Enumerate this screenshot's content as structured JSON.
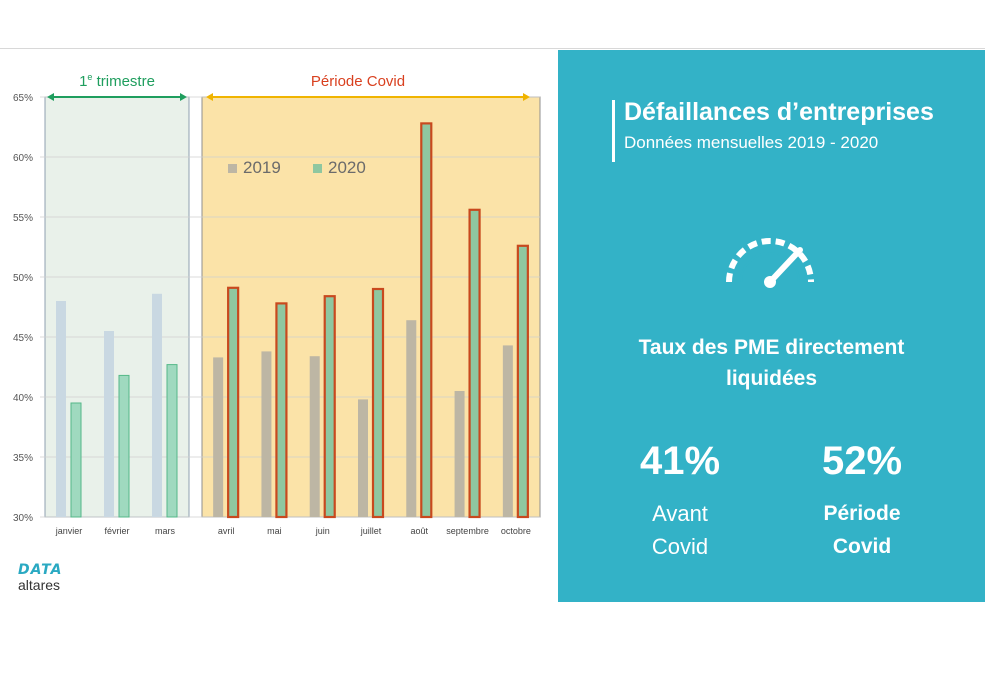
{
  "chart_data": {
    "type": "bar",
    "categories": [
      "janvier",
      "février",
      "mars",
      "avril",
      "mai",
      "juin",
      "juillet",
      "août",
      "septembre",
      "octobre"
    ],
    "series": [
      {
        "name": "2019",
        "values": [
          48.0,
          45.5,
          48.6,
          43.3,
          43.8,
          43.4,
          39.8,
          46.4,
          40.5,
          44.3
        ]
      },
      {
        "name": "2020",
        "values": [
          39.5,
          41.8,
          42.7,
          49.1,
          47.8,
          48.4,
          49.0,
          62.8,
          55.6,
          52.6
        ]
      }
    ],
    "ylim": [
      30,
      65
    ],
    "yticks": [
      30,
      35,
      40,
      45,
      50,
      55,
      60,
      65
    ],
    "ytick_suffix": "%",
    "grid": true,
    "legend_position": "top-left inside Période Covid area",
    "periods": [
      {
        "label": "1e trimestre",
        "sup_label": "1",
        "sup": "e",
        "rest": " trimestre",
        "categories": [
          "janvier",
          "février",
          "mars"
        ],
        "color": "#1f9e5e",
        "fill": "#e9f1ea"
      },
      {
        "label": "Période Covid",
        "categories": [
          "avril",
          "mai",
          "juin",
          "juillet",
          "août",
          "septembre",
          "octobre"
        ],
        "color": "#d9401f",
        "fill": "#fbe3a8"
      }
    ],
    "colors": {
      "q1_2019": "#c9d8e2",
      "q1_2020": "#9fd9bf",
      "covid_2019": "#bdb6a4",
      "covid_2020": "#8fc7a0",
      "covid_2020_outline": "#c8491e",
      "q1_2020_outline": "#54b888"
    }
  },
  "brand": {
    "mark": "DATA",
    "name": "altares"
  },
  "panel": {
    "title": "Défaillances d’entreprises",
    "subtitle": "Données mensuelles 2019 - 2020",
    "gauge_icon": "speedometer-icon",
    "rate_label_line1": "Taux des PME directement",
    "rate_label_line2": "liquidées",
    "stat_before": {
      "value": "41%",
      "label_line1": "Avant",
      "label_line2": "Covid"
    },
    "stat_covid": {
      "value": "52%",
      "label_line1": "Période",
      "label_line2": "Covid"
    },
    "background": "#33b2c7"
  }
}
